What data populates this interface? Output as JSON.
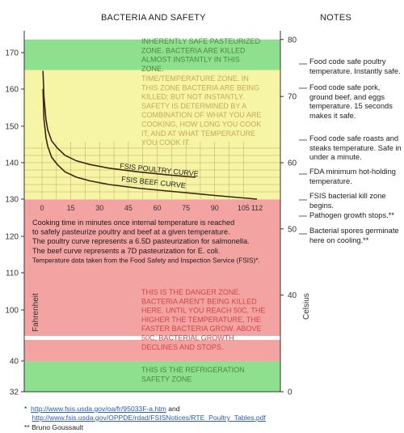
{
  "headings": {
    "left": "BACTERIA AND SAFETY",
    "right": "NOTES"
  },
  "chart_data": {
    "type": "line",
    "left_axis": {
      "label": "Fahrenheit",
      "unit": "°F",
      "ticks": [
        32,
        40,
        100,
        110,
        120,
        130,
        140,
        150,
        160,
        170
      ],
      "range": [
        32,
        180
      ]
    },
    "right_axis": {
      "label": "Celsius",
      "unit": "°C",
      "ticks": [
        0,
        40,
        50,
        60,
        70,
        80
      ],
      "range": [
        0,
        80
      ]
    },
    "time_axis": {
      "unit": "minutes",
      "ticks": [
        "0",
        "15",
        "30",
        "45",
        "60",
        "75",
        "90",
        "105",
        "112"
      ],
      "range": [
        0,
        112
      ]
    },
    "zones": [
      {
        "name": "safe",
        "color": "#8ee08e",
        "range_c": [
          74,
          80
        ],
        "text": "INHERENTLY SAFE PASTEURIZED ZONE. BACTERIA ARE KILLED ALMOST INSTANTLY IN THIS ZONE."
      },
      {
        "name": "time-temperature",
        "color": "#f6f5a5",
        "range_c": [
          54.4,
          74
        ],
        "text": "TIME/TEMPERATURE ZONE. IN THIS ZONE BACTERIA ARE BEING KILLED; BUT NOT INSTANTLY. SAFETY IS DETERMINED BY A COMBINATION OF WHAT YOU ARE COOKING, HOW LONG YOU COOK IT, AND AT WHAT TEMPERATURE YOU COOK IT."
      },
      {
        "name": "danger",
        "color": "#f4a3a3",
        "range_c": [
          4.4,
          54.4
        ],
        "text": "THIS IS THE DANGER ZONE. BACTERIA AREN'T BEING KILLED HERE. UNTIL YOU REACH 50C, THE HIGHER THE TEMPERATURE, THE FASTER BACTERIA GROW. ABOVE 50C, BACTERIAL GROWTH DECLINES AND STOPS."
      },
      {
        "name": "refrigeration",
        "color": "#8ee08e",
        "range_c": [
          0,
          4.4
        ],
        "text": "THIS IS THE REFRIGERATION SAFETY ZONE"
      }
    ],
    "series": [
      {
        "name": "FSIS POULTRY CURVE",
        "x": [
          0.5,
          1,
          2,
          3,
          5,
          8,
          12,
          18,
          25,
          35,
          50,
          65,
          80
        ],
        "y": [
          165,
          158,
          152,
          149,
          146,
          144,
          142,
          140.5,
          139.5,
          138.5,
          137.5,
          136.7,
          136
        ]
      },
      {
        "name": "FSIS BEEF CURVE",
        "x": [
          0.5,
          1,
          2,
          3,
          5,
          8,
          12,
          18,
          25,
          35,
          50,
          70,
          90,
          112
        ],
        "y": [
          160,
          152,
          147,
          144.5,
          141.5,
          139.5,
          137.5,
          136,
          135,
          134,
          133,
          132,
          131,
          130
        ]
      }
    ],
    "description_lines": [
      "Cooking time in minutes once internal temperature is reached",
      "to safely pasteurize poultry and beef at a given temperature.",
      "The poultry curve represents a 6.5D pasteurization for salmonella.",
      "The beef curve represents a 7D pasteurization for E. coli.",
      "Temperature data taken from the Food Safety and Inspection Service (FSIS)*."
    ]
  },
  "notes": [
    {
      "text": "Food code safe poultry temperature. Instantly safe."
    },
    {
      "text": "Food code safe pork, ground beef, and eggs temperature. 15 seconds makes it safe."
    },
    {
      "text": "Food code safe roasts and steaks temperature. Safe in under a minute."
    },
    {
      "text": "FDA minimum hot-holding temperature."
    },
    {
      "text": "FSIS bacterial kill zone begins."
    },
    {
      "text": "Pathogen growth stops.**"
    },
    {
      "text": "Bacterial spores germinate here on cooling.**"
    }
  ],
  "footnotes": {
    "star1_mark": "*",
    "link1": "http://www.fsis.usda.gov/oa/fr/95033F-a.htm",
    "and": "and",
    "link2": "http://www.fsis.usda.gov/OPPDE/rdad/FSISNotices/RTE_Poultry_Tables.pdf",
    "star2": "** Bruno Goussault"
  },
  "colors": {
    "axis": "#333333",
    "curve": "#3a2614",
    "grid": "#c2a46a",
    "zone_text_green": "#4a8a3c",
    "zone_text_yellow": "#c8a85a",
    "zone_text_red": "#d24545"
  }
}
